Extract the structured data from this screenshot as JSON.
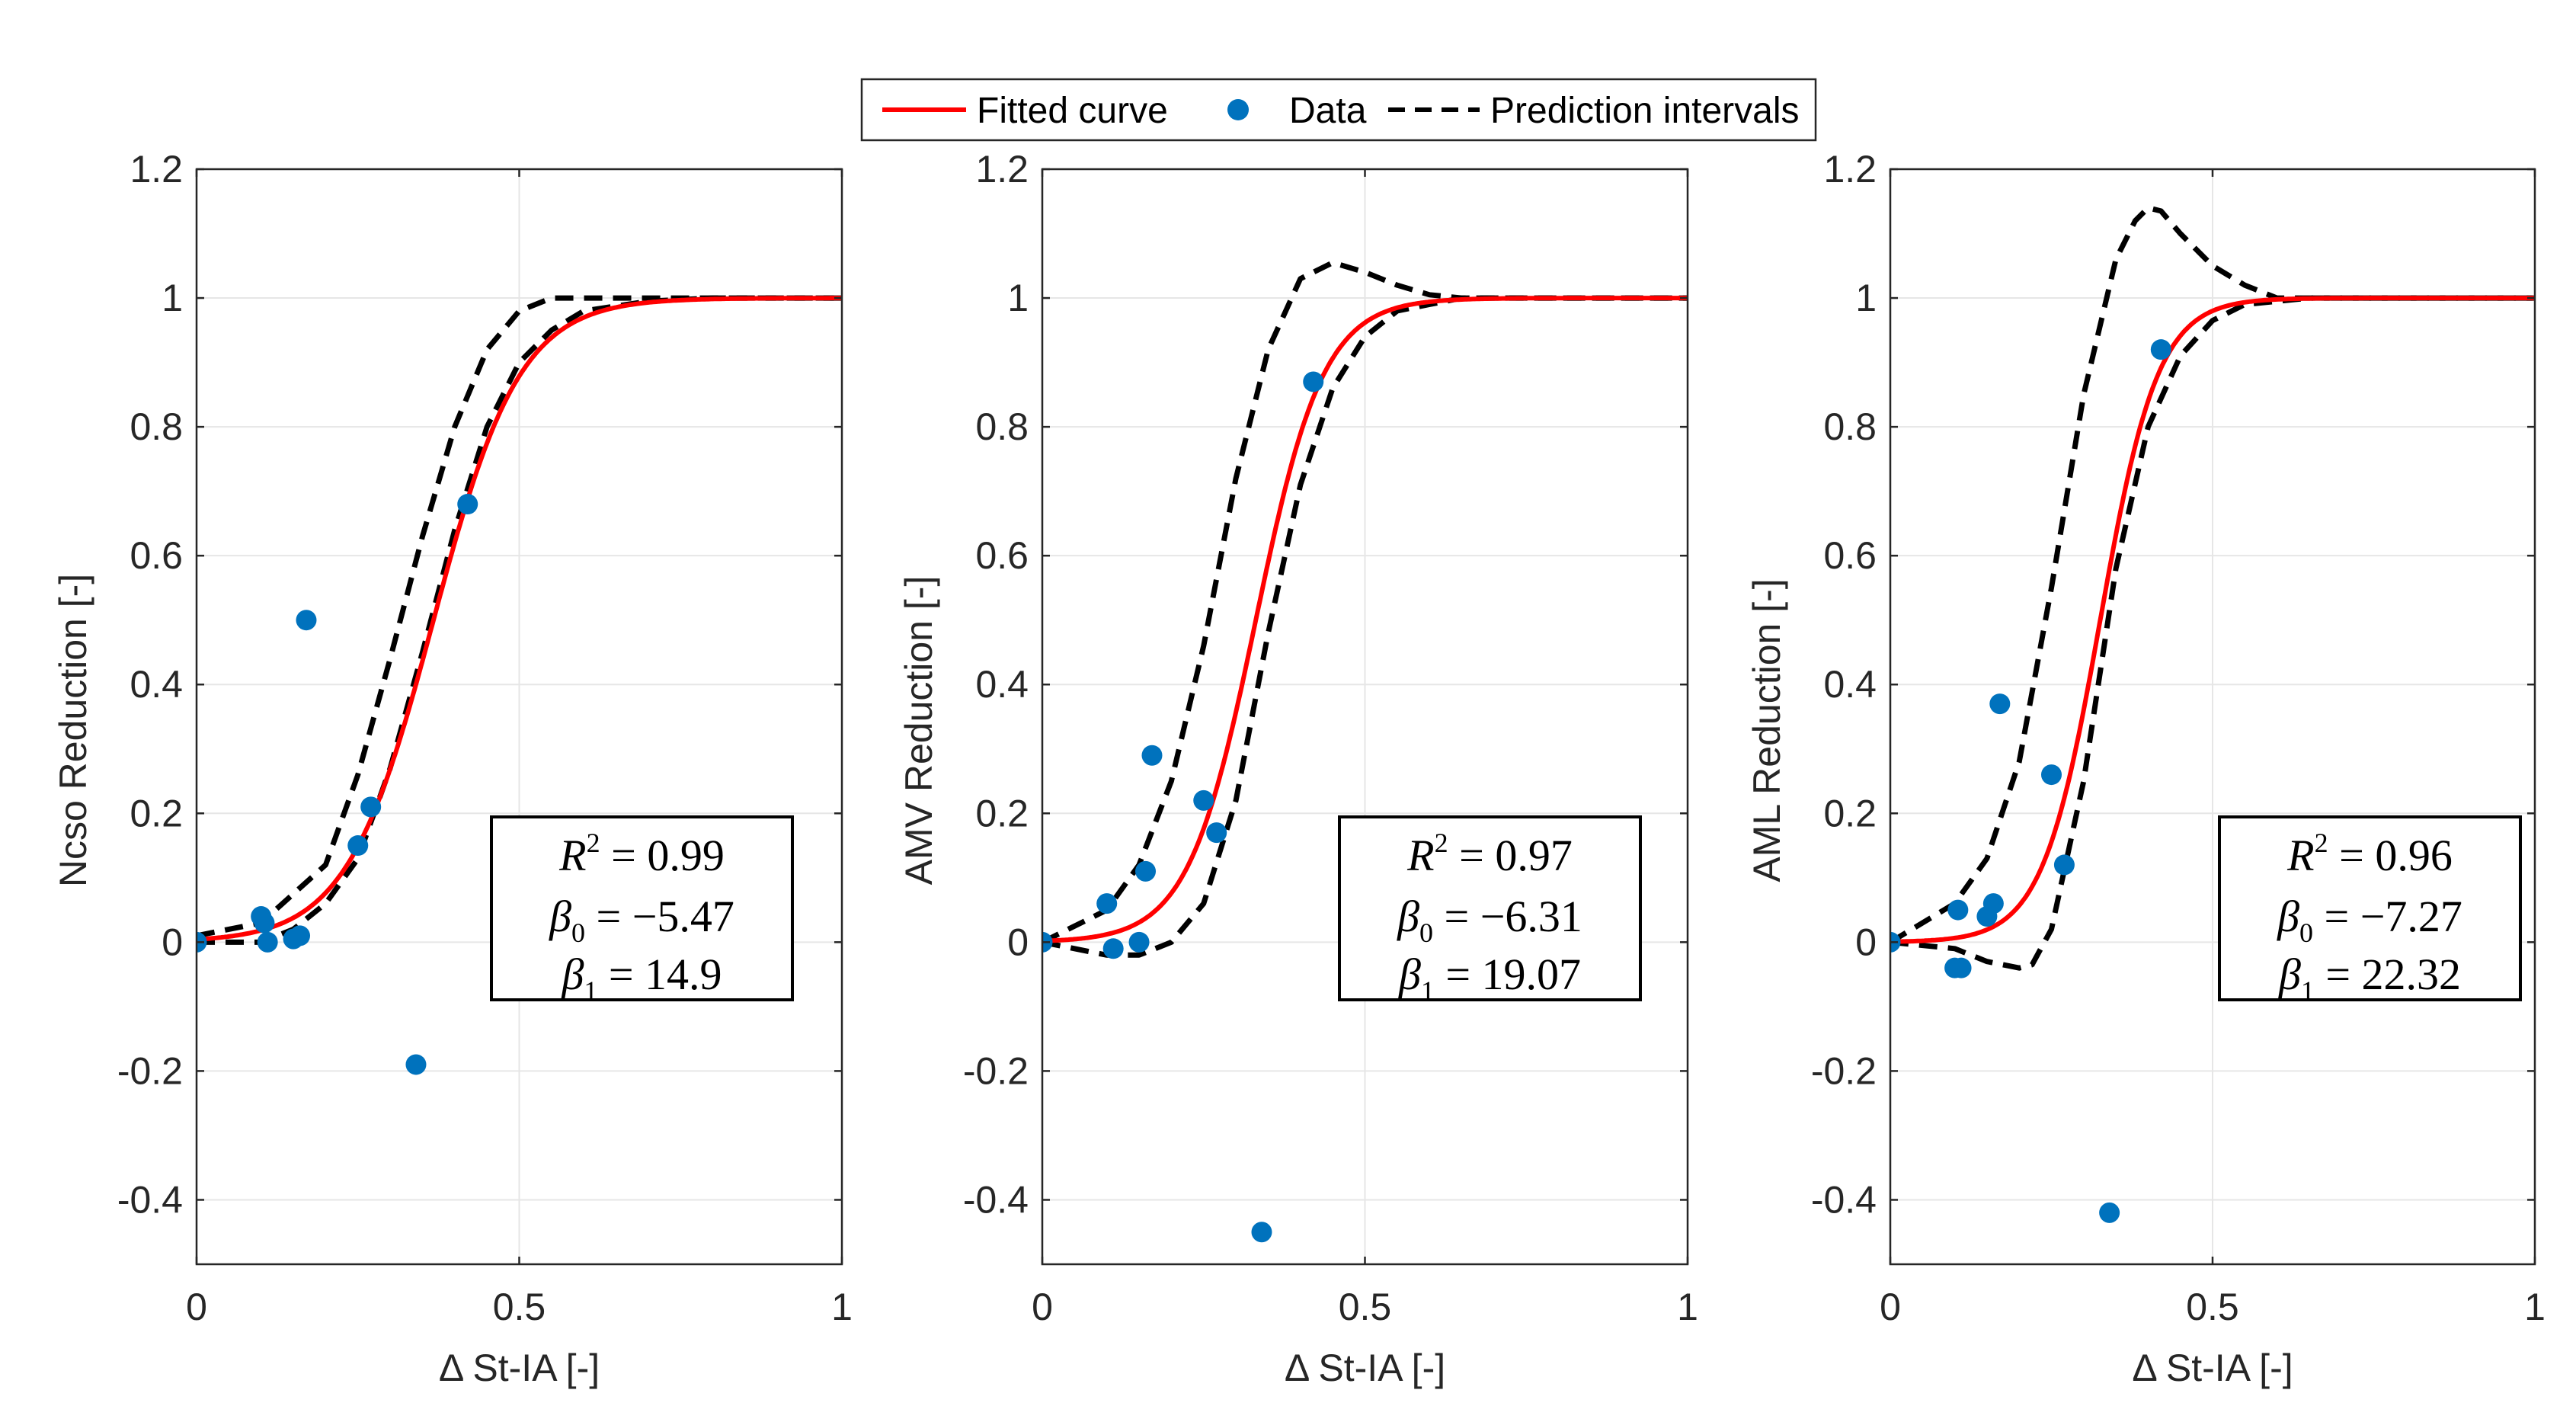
{
  "legend": {
    "items": [
      {
        "label": "Fitted curve",
        "style": "line",
        "color": "#ff0000"
      },
      {
        "label": "Data",
        "style": "marker",
        "color": "#0072bd"
      },
      {
        "label": "Prediction intervals",
        "style": "dashed",
        "color": "#000000"
      }
    ],
    "placement": "top-center"
  },
  "chart_data": [
    {
      "type": "scatter",
      "xlabel": "Δ St-IA [-]",
      "ylabel": "Ncso Reduction [-]",
      "xlim": [
        0,
        1
      ],
      "ylim": [
        -0.5,
        1.2
      ],
      "xticks": [
        "0",
        "0.5",
        "1"
      ],
      "yticks": [
        "-0.4",
        "-0.2",
        "0",
        "0.2",
        "0.4",
        "0.6",
        "0.8",
        "1",
        "1.2"
      ],
      "grid": true,
      "series": [
        {
          "name": "Data",
          "kind": "points",
          "color": "#0072bd",
          "x": [
            0.0,
            0.1,
            0.105,
            0.11,
            0.15,
            0.16,
            0.17,
            0.25,
            0.27,
            0.34,
            0.42
          ],
          "y": [
            0.0,
            0.04,
            0.03,
            0.0,
            0.005,
            0.01,
            0.5,
            0.15,
            0.21,
            -0.19,
            0.68
          ]
        },
        {
          "name": "Fitted curve",
          "kind": "logistic",
          "color": "#ff0000",
          "beta0": -5.47,
          "beta1": 14.9
        },
        {
          "name": "Prediction intervals",
          "kind": "interval",
          "color": "#000000",
          "upper": {
            "x": [
              0,
              0.1,
              0.2,
              0.25,
              0.3,
              0.35,
              0.4,
              0.45,
              0.5,
              0.55,
              0.6,
              0.7,
              1.0
            ],
            "y": [
              0.01,
              0.03,
              0.12,
              0.26,
              0.44,
              0.63,
              0.8,
              0.92,
              0.98,
              1.0,
              1.0,
              1.0,
              1.0
            ]
          },
          "lower": {
            "x": [
              0,
              0.1,
              0.15,
              0.2,
              0.25,
              0.3,
              0.35,
              0.4,
              0.45,
              0.5,
              0.55,
              0.6,
              0.7,
              0.8,
              1.0
            ],
            "y": [
              0.0,
              0.0,
              0.02,
              0.06,
              0.13,
              0.27,
              0.45,
              0.64,
              0.8,
              0.9,
              0.95,
              0.98,
              0.995,
              1.0,
              1.0
            ]
          }
        }
      ],
      "stats": {
        "r2": "0.99",
        "beta0": "−5.47",
        "beta1": "14.9"
      }
    },
    {
      "type": "scatter",
      "xlabel": "Δ St-IA [-]",
      "ylabel": "AMV Reduction [-]",
      "xlim": [
        0,
        1
      ],
      "ylim": [
        -0.5,
        1.2
      ],
      "xticks": [
        "0",
        "0.5",
        "1"
      ],
      "yticks": [
        "-0.4",
        "-0.2",
        "0",
        "0.2",
        "0.4",
        "0.6",
        "0.8",
        "1",
        "1.2"
      ],
      "grid": true,
      "series": [
        {
          "name": "Data",
          "kind": "points",
          "color": "#0072bd",
          "x": [
            0.0,
            0.1,
            0.11,
            0.15,
            0.16,
            0.17,
            0.25,
            0.27,
            0.34,
            0.42
          ],
          "y": [
            0.0,
            0.06,
            -0.01,
            0.0,
            0.11,
            0.29,
            0.22,
            0.17,
            -0.45,
            0.87
          ]
        },
        {
          "name": "Fitted curve",
          "kind": "logistic",
          "color": "#ff0000",
          "beta0": -6.31,
          "beta1": 19.07
        },
        {
          "name": "Prediction intervals",
          "kind": "interval",
          "color": "#000000",
          "upper": {
            "x": [
              0,
              0.1,
              0.15,
              0.2,
              0.25,
              0.3,
              0.35,
              0.4,
              0.45,
              0.5,
              0.55,
              0.6,
              0.65,
              0.7,
              1.0
            ],
            "y": [
              0.0,
              0.05,
              0.12,
              0.25,
              0.46,
              0.72,
              0.92,
              1.03,
              1.055,
              1.04,
              1.02,
              1.005,
              1.0,
              1.0,
              1.0
            ]
          },
          "lower": {
            "x": [
              0,
              0.1,
              0.15,
              0.2,
              0.25,
              0.3,
              0.35,
              0.4,
              0.45,
              0.5,
              0.55,
              0.6,
              0.65,
              0.7,
              1.0
            ],
            "y": [
              0.0,
              -0.02,
              -0.02,
              0.0,
              0.06,
              0.22,
              0.48,
              0.71,
              0.86,
              0.94,
              0.98,
              0.99,
              1.0,
              1.0,
              1.0
            ]
          }
        }
      ],
      "stats": {
        "r2": "0.97",
        "beta0": "−6.31",
        "beta1": "19.07"
      }
    },
    {
      "type": "scatter",
      "xlabel": "Δ St-IA [-]",
      "ylabel": "AML Reduction [-]",
      "xlim": [
        0,
        1
      ],
      "ylim": [
        -0.5,
        1.2
      ],
      "xticks": [
        "0",
        "0.5",
        "1"
      ],
      "yticks": [
        "-0.4",
        "-0.2",
        "0",
        "0.2",
        "0.4",
        "0.6",
        "0.8",
        "1",
        "1.2"
      ],
      "grid": true,
      "series": [
        {
          "name": "Data",
          "kind": "points",
          "color": "#0072bd",
          "x": [
            0.0,
            0.1,
            0.11,
            0.105,
            0.15,
            0.16,
            0.17,
            0.25,
            0.27,
            0.34,
            0.42
          ],
          "y": [
            0.0,
            -0.04,
            -0.04,
            0.05,
            0.04,
            0.06,
            0.37,
            0.26,
            0.12,
            -0.42,
            0.92
          ]
        },
        {
          "name": "Fitted curve",
          "kind": "logistic",
          "color": "#ff0000",
          "beta0": -7.27,
          "beta1": 22.32
        },
        {
          "name": "Prediction intervals",
          "kind": "interval",
          "color": "#000000",
          "upper": {
            "x": [
              0,
              0.1,
              0.15,
              0.2,
              0.25,
              0.3,
              0.35,
              0.38,
              0.4,
              0.42,
              0.45,
              0.5,
              0.55,
              0.6,
              0.7,
              1.0
            ],
            "y": [
              0.0,
              0.06,
              0.13,
              0.28,
              0.55,
              0.85,
              1.06,
              1.12,
              1.14,
              1.135,
              1.1,
              1.05,
              1.02,
              1.0,
              1.0,
              1.0
            ]
          },
          "lower": {
            "x": [
              0,
              0.1,
              0.15,
              0.2,
              0.22,
              0.25,
              0.3,
              0.35,
              0.4,
              0.45,
              0.5,
              0.55,
              0.6,
              0.65,
              0.7,
              1.0
            ],
            "y": [
              0.0,
              -0.01,
              -0.03,
              -0.04,
              -0.035,
              0.02,
              0.25,
              0.58,
              0.8,
              0.91,
              0.965,
              0.99,
              0.995,
              1.0,
              1.0,
              1.0
            ]
          }
        }
      ],
      "stats": {
        "r2": "0.96",
        "beta0": "−7.27",
        "beta1": "22.32"
      }
    }
  ]
}
